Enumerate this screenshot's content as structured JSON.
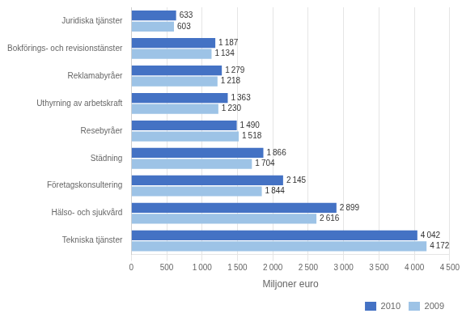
{
  "chart_data": {
    "type": "bar",
    "orientation": "horizontal",
    "xlabel": "Miljoner euro",
    "categories": [
      "Juridiska tjänster",
      "Bokförings- och revisionstänster",
      "Reklamabyråer",
      "Uthyrning av arbetskraft",
      "Resebyråer",
      "Städning",
      "Företagskonsultering",
      "Hälso- och sjukvård",
      "Tekniska tjänster"
    ],
    "series": [
      {
        "name": "2010",
        "color": "#4472C4",
        "values": [
          633,
          1187,
          1279,
          1363,
          1490,
          1866,
          2145,
          2899,
          4042
        ],
        "value_labels": [
          "633",
          "1 187",
          "1 279",
          "1 363",
          "1 490",
          "1 866",
          "2 145",
          "2 899",
          "4 042"
        ]
      },
      {
        "name": "2009",
        "color": "#9DC3E6",
        "values": [
          603,
          1134,
          1218,
          1230,
          1518,
          1704,
          1844,
          2616,
          4172
        ],
        "value_labels": [
          "603",
          "1 134",
          "1 218",
          "1 230",
          "1 518",
          "1 704",
          "1 844",
          "2 616",
          "4 172"
        ]
      }
    ],
    "xlim": [
      0,
      4500
    ],
    "xticks": [
      0,
      500,
      {
        "value": 1000,
        "label": "1 000"
      },
      {
        "value": 1500,
        "label": "1 500"
      },
      {
        "value": 2000,
        "label": "2 000"
      },
      {
        "value": 2500,
        "label": "2 500"
      },
      {
        "value": 3000,
        "label": "3 000"
      },
      {
        "value": 3500,
        "label": "3 500"
      },
      {
        "value": 4000,
        "label": "4 000"
      },
      {
        "value": 4500,
        "label": "4 500"
      }
    ],
    "grid": true,
    "legend": "bottom",
    "data_labels": true
  }
}
